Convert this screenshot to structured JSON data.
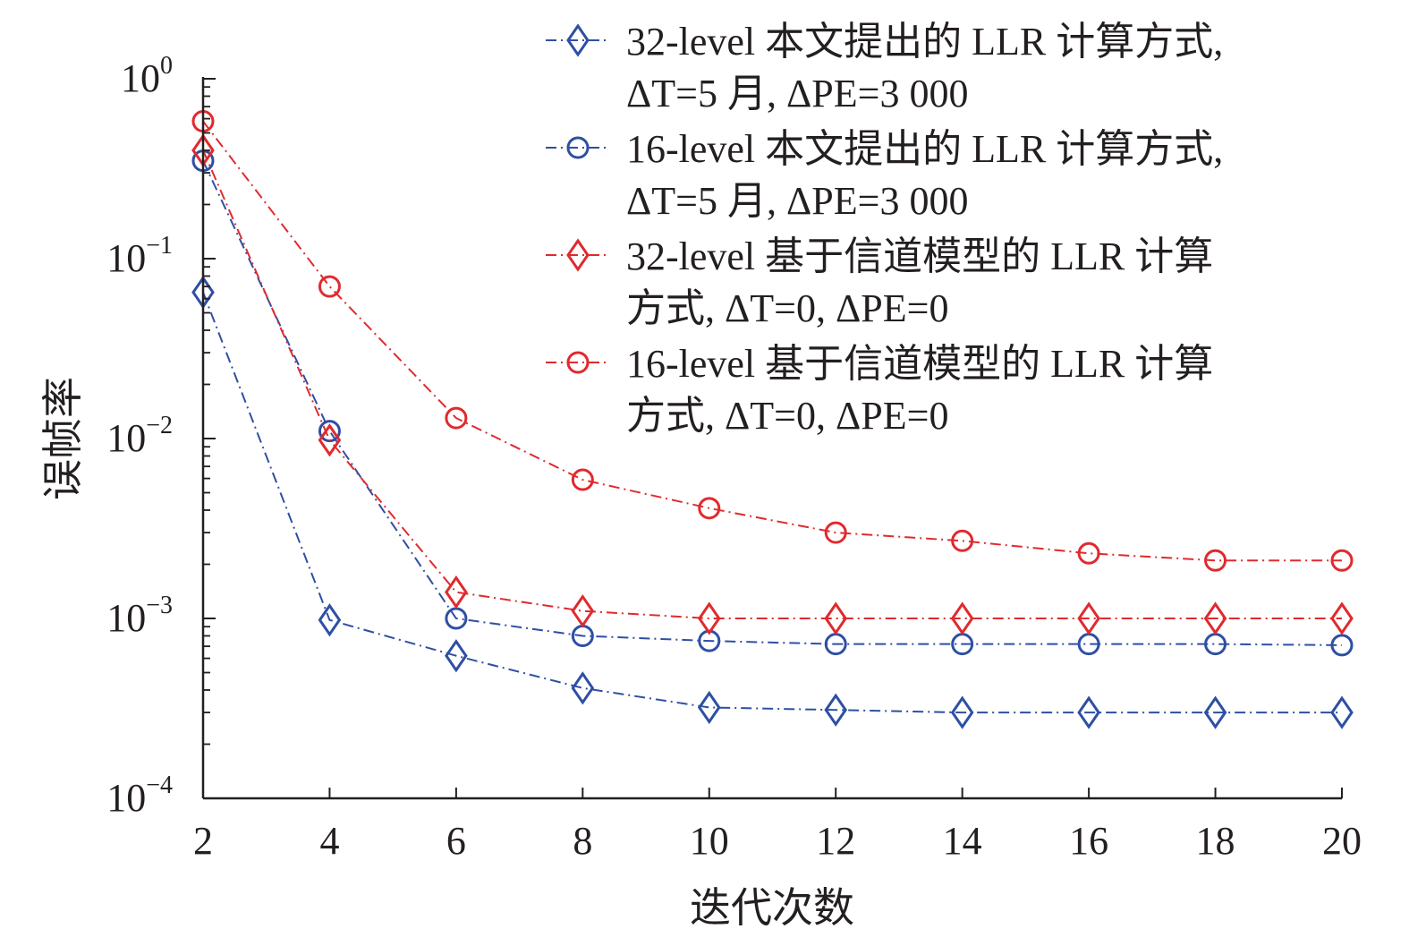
{
  "chart_data": {
    "type": "line",
    "title": "",
    "xlabel": "迭代次数",
    "ylabel": "误帧率",
    "xlim": [
      2,
      20
    ],
    "ylim": [
      0.0001,
      1
    ],
    "yscale": "log",
    "x": [
      2,
      4,
      6,
      8,
      10,
      12,
      14,
      16,
      18,
      20
    ],
    "x_ticks": [
      "2",
      "4",
      "6",
      "8",
      "10",
      "12",
      "14",
      "16",
      "18",
      "20"
    ],
    "y_ticks": [
      {
        "base": "10",
        "exp": "0",
        "value": 1
      },
      {
        "base": "10",
        "exp": "−1",
        "value": 0.1
      },
      {
        "base": "10",
        "exp": "−2",
        "value": 0.01
      },
      {
        "base": "10",
        "exp": "−3",
        "value": 0.001
      },
      {
        "base": "10",
        "exp": "−4",
        "value": 0.0001
      }
    ],
    "legend_position": "top-right",
    "series": [
      {
        "name": "32-level 本文提出的 LLR 计算方式, ΔT=5 月, ΔPE=3 000",
        "legend_lines": [
          "32-level 本文提出的 LLR 计算方式,",
          "ΔT=5 月, ΔPE=3 000"
        ],
        "color": "#2e4fa3",
        "marker": "diamond",
        "values": [
          0.065,
          0.00098,
          0.00062,
          0.00041,
          0.00032,
          0.00031,
          0.0003,
          0.0003,
          0.0003,
          0.0003
        ]
      },
      {
        "name": "16-level 本文提出的 LLR 计算方式, ΔT=5 月, ΔPE=3 000",
        "legend_lines": [
          "16-level 本文提出的 LLR 计算方式,",
          "ΔT=5 月, ΔPE=3 000"
        ],
        "color": "#2e4fa3",
        "marker": "circle",
        "values": [
          0.35,
          0.011,
          0.001,
          0.0008,
          0.00075,
          0.00072,
          0.00072,
          0.00072,
          0.00072,
          0.00071
        ]
      },
      {
        "name": "32-level 基于信道模型的 LLR 计算方式, ΔT=0, ΔPE=0",
        "legend_lines": [
          "32-level 基于信道模型的 LLR 计算",
          "方式, ΔT=0, ΔPE=0"
        ],
        "color": "#e02a2e",
        "marker": "diamond",
        "values": [
          0.4,
          0.0098,
          0.0014,
          0.0011,
          0.001,
          0.001,
          0.001,
          0.001,
          0.001,
          0.001
        ]
      },
      {
        "name": "16-level 基于信道模型的 LLR 计算方式, ΔT=0, ΔPE=0",
        "legend_lines": [
          "16-level 基于信道模型的 LLR 计算",
          "方式, ΔT=0, ΔPE=0"
        ],
        "color": "#e02a2e",
        "marker": "circle",
        "values": [
          0.58,
          0.07,
          0.013,
          0.0059,
          0.0041,
          0.003,
          0.0027,
          0.0023,
          0.0021,
          0.0021
        ]
      }
    ]
  }
}
